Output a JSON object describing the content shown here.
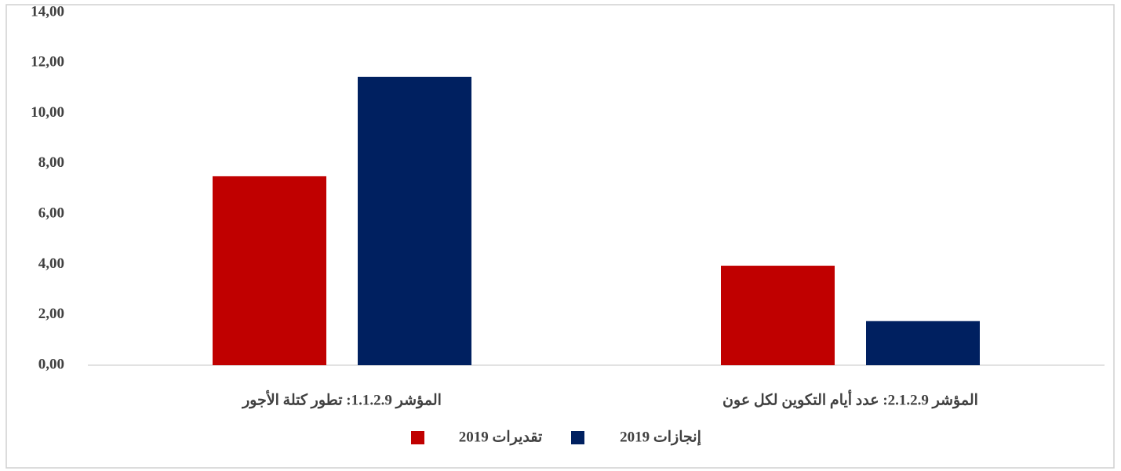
{
  "chart_data": {
    "type": "bar",
    "categories": [
      "المؤشر 1.1.2.9: تطور كتلة الأجور",
      "المؤشر 2.1.2.9: عدد أيام التكوين لكل عون"
    ],
    "series": [
      {
        "name": "تقديرات 2019",
        "color": "#c00000",
        "values": [
          7.5,
          3.95
        ]
      },
      {
        "name": "إنجازات 2019",
        "color": "#002060",
        "values": [
          11.45,
          1.75
        ]
      }
    ],
    "ylim": [
      0,
      14
    ],
    "yticks": [
      {
        "value": 0,
        "label": "0,00"
      },
      {
        "value": 2,
        "label": "2,00"
      },
      {
        "value": 4,
        "label": "4,00"
      },
      {
        "value": 6,
        "label": "6,00"
      },
      {
        "value": 8,
        "label": "8,00"
      },
      {
        "value": 10,
        "label": "10,00"
      },
      {
        "value": 12,
        "label": "12,00"
      },
      {
        "value": 14,
        "label": "14,00"
      }
    ],
    "grid": false,
    "legend": "bottom"
  }
}
